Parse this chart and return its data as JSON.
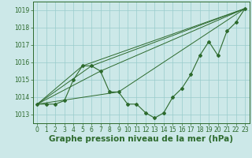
{
  "xlabel": "Graphe pression niveau de la mer (hPa)",
  "xlim": [
    -0.5,
    23.5
  ],
  "ylim": [
    1012.5,
    1019.5
  ],
  "yticks": [
    1013,
    1014,
    1015,
    1016,
    1017,
    1018,
    1019
  ],
  "xticks": [
    0,
    1,
    2,
    3,
    4,
    5,
    6,
    7,
    8,
    9,
    10,
    11,
    12,
    13,
    14,
    15,
    16,
    17,
    18,
    19,
    20,
    21,
    22,
    23
  ],
  "main_x": [
    0,
    1,
    2,
    3,
    4,
    5,
    6,
    7,
    8,
    9,
    10,
    11,
    12,
    13,
    14,
    15,
    16,
    17,
    18,
    19,
    20,
    21,
    22,
    23
  ],
  "main_y": [
    1013.6,
    1013.6,
    1013.6,
    1013.8,
    1015.0,
    1015.8,
    1015.8,
    1015.5,
    1014.3,
    1014.3,
    1013.6,
    1013.6,
    1013.1,
    1012.8,
    1013.1,
    1014.0,
    1014.5,
    1015.3,
    1016.4,
    1017.2,
    1016.4,
    1017.8,
    1018.3,
    1019.1
  ],
  "ref_lines": [
    {
      "x0": 0,
      "y0": 1013.6,
      "x1": 5,
      "y1": 1015.8,
      "x2": 23,
      "y2": 1019.1
    },
    {
      "x0": 0,
      "y0": 1013.6,
      "x1": 6,
      "y1": 1015.8,
      "x2": 23,
      "y2": 1019.1
    },
    {
      "x0": 0,
      "y0": 1013.6,
      "x1": 7,
      "y1": 1015.5,
      "x2": 23,
      "y2": 1019.1
    },
    {
      "x0": 0,
      "y0": 1013.6,
      "x1": 9,
      "y1": 1014.3,
      "x2": 23,
      "y2": 1019.1
    }
  ],
  "line_color": "#2d6a2d",
  "bg_color": "#cce8e8",
  "grid_color": "#99cccc",
  "label_color": "#2d6a2d",
  "tick_fontsize": 5.5,
  "xlabel_fontsize": 7.5
}
